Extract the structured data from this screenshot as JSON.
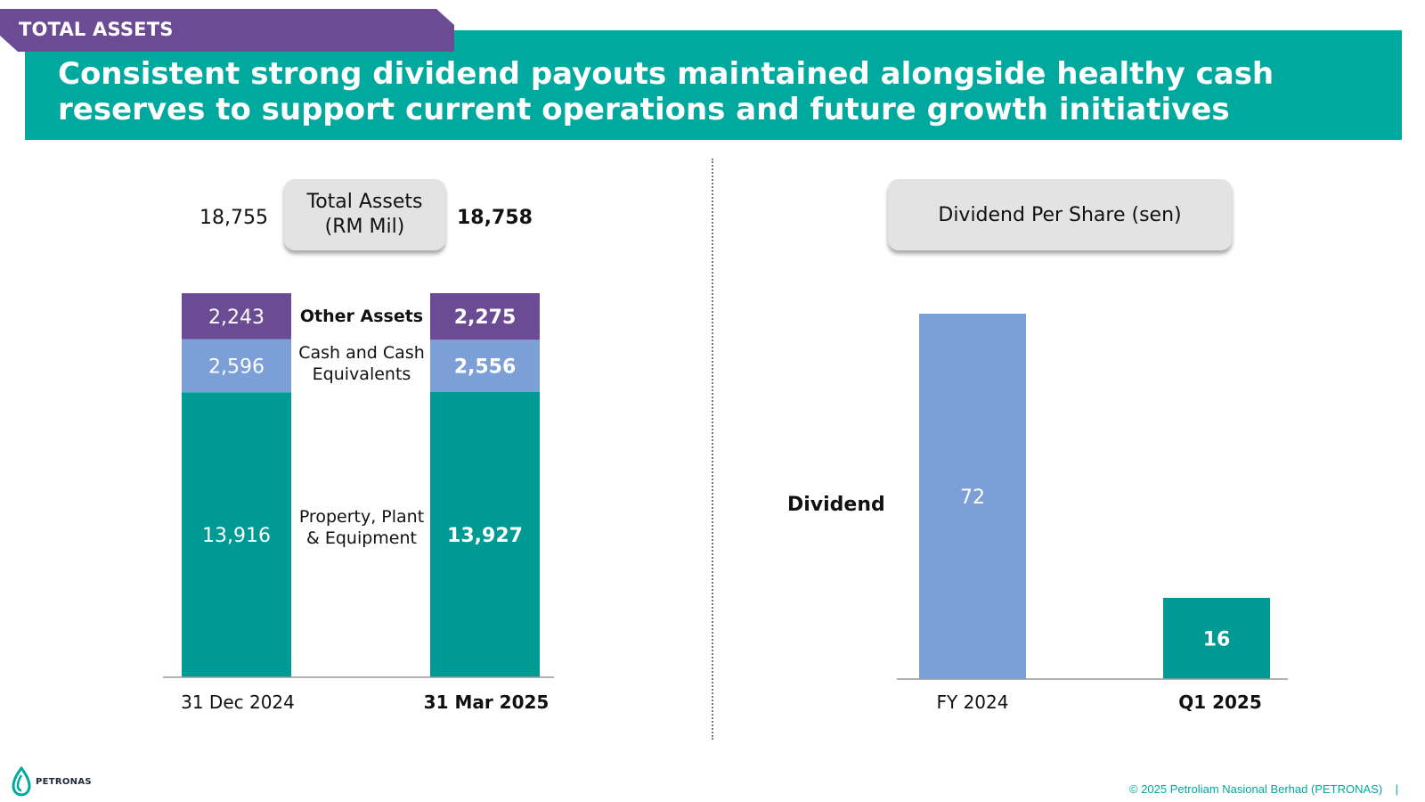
{
  "section_tag": "TOTAL ASSETS",
  "headline": "Consistent strong dividend payouts maintained alongside healthy cash reserves to support current operations and future growth initiatives",
  "footer": {
    "logo_text": "PETRONAS",
    "copyright": "© 2025 Petroliam Nasional Berhad (PETRONAS)",
    "separator": "|"
  },
  "colors": {
    "teal": "#00a99d",
    "bar_teal": "#009a94",
    "purple_dark": "#6b4c94",
    "blue_light": "#7b9fd6",
    "pill_gray": "#e3e3e3"
  },
  "chart_data": [
    {
      "type": "bar",
      "stacked": true,
      "title": "Total Assets\n(RM Mil)",
      "categories": [
        "31 Dec 2024",
        "31 Mar 2025"
      ],
      "totals": [
        "18,755",
        "18,758"
      ],
      "series": [
        {
          "name": "Property, Plant & Equipment",
          "values": [
            13916,
            13927
          ],
          "labels": [
            "13,916",
            "13,927"
          ],
          "color": "#009a94"
        },
        {
          "name": "Cash and Cash Equivalents",
          "values": [
            2596,
            2556
          ],
          "labels": [
            "2,596",
            "2,556"
          ],
          "color": "#7b9fd6"
        },
        {
          "name": "Other Assets",
          "values": [
            2243,
            2275
          ],
          "labels": [
            "2,243",
            "2,275"
          ],
          "color": "#6b4c94"
        }
      ],
      "segment_labels": [
        "Other Assets",
        "Cash and Cash\nEquivalents",
        "Property, Plant\n& Equipment"
      ],
      "ylim": [
        0,
        18758
      ],
      "grid": false
    },
    {
      "type": "bar",
      "title": "Dividend Per Share (sen)",
      "ylabel": "Dividend",
      "categories": [
        "FY 2024",
        "Q1 2025"
      ],
      "values": [
        72,
        16
      ],
      "labels": [
        "72",
        "16"
      ],
      "colors": [
        "#7b9fd6",
        "#009a94"
      ],
      "ylim": [
        0,
        72
      ],
      "grid": false
    }
  ]
}
